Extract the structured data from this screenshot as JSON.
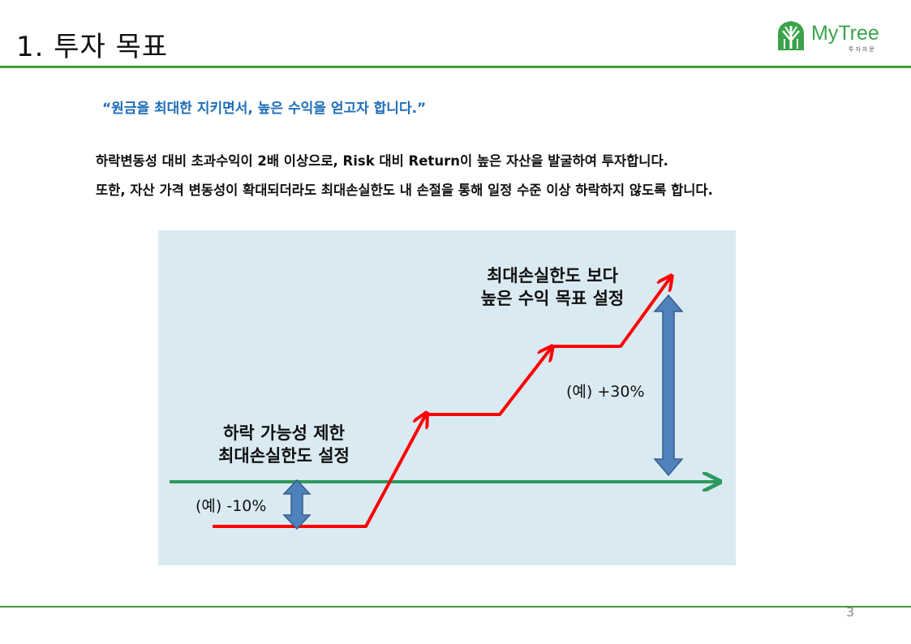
{
  "header": {
    "title": "1. 투자 목표",
    "logo_name": "MyTree",
    "logo_sub": "투자자문"
  },
  "intro": {
    "quote": "“원금을 최대한 지키면서, 높은 수익을 얻고자 합니다.”",
    "line1": "하락변동성 대비 초과수익이 2배 이상으로, Risk 대비 Return이 높은 자산을 발굴하여 투자합니다.",
    "line2": "또한, 자산 가격 변동성이 확대되더라도 최대손실한도 내 손절을 통해 일정 수준 이상 하락하지 않도록 합니다."
  },
  "diagram": {
    "upper_label_line1": "최대손실한도 보다",
    "upper_label_line2": "높은 수익 목표 설정",
    "upper_value": "(예)  +30%",
    "lower_label_line1": "하락 가능성 제한",
    "lower_label_line2": "최대손실한도 설정",
    "lower_value": "(예)  -10%",
    "colors": {
      "background": "#daeaf2",
      "baseline": "#2e9a5e",
      "return_path": "#ff0000",
      "range_arrow": "#4f81bd"
    }
  },
  "footer": {
    "page_number": "3"
  }
}
